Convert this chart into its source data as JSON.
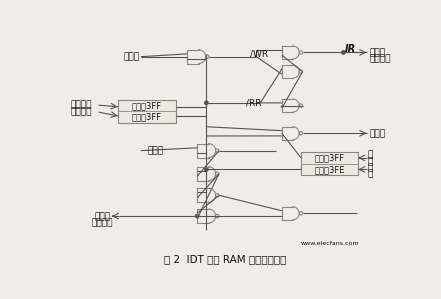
{
  "title": "图 2  IDT 双口 RAM 中断逻辑设计",
  "background_color": "#f0ede8",
  "fig_width": 4.41,
  "fig_height": 2.99,
  "dpi": 100,
  "gate_color": "#888880",
  "line_color": "#555550",
  "text_color": "#111111",
  "labels": {
    "left_write": "左边写",
    "left_int_addr1": "左边中断",
    "left_int_addr2": "信箱地址",
    "left_read": "左边读",
    "give_left_int1": "给左边",
    "give_left_int2": "中断信号",
    "give_right_int1": "给右边",
    "give_right_int2": "中断信号",
    "right_read": "右边读",
    "right_addr1": "右",
    "right_addr2": "边",
    "right_addr3": "地",
    "right_addr4": "址",
    "WR": "/WR",
    "RR": "/RR",
    "IR": "IR",
    "addr_3FF_1": "地址＝3FF",
    "addr_3FF_2": "地址＝3FF",
    "addr_3FF_r": "地址＝3FF",
    "addr_3FE_r": "地址＝3FE",
    "watermark": "www.elecfans.com"
  }
}
